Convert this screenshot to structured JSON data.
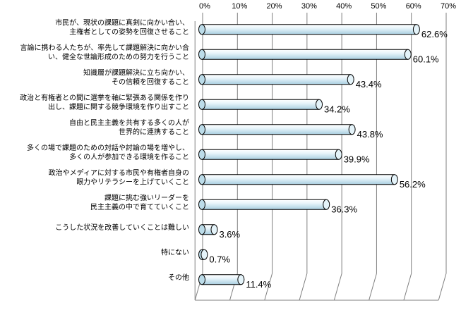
{
  "chart_data": {
    "type": "bar",
    "orientation": "horizontal",
    "style": "3d-cylinder",
    "x_ticks": [
      "0%",
      "10%",
      "20%",
      "30%",
      "40%",
      "50%",
      "60%",
      "70%"
    ],
    "xlim": [
      0,
      70
    ],
    "grid": true,
    "categories": [
      [
        "市民が、現状の課題に真剣に向かい合い、",
        "主権者としての姿勢を回復させること"
      ],
      [
        "言論に携わる人たちが、率先して課題解決に向かい合",
        "い、健全な世論形成のための努力を行うこと"
      ],
      [
        "知識層が課題解決に立ち向かい、",
        "その信頼を回復すること"
      ],
      [
        "政治と有権者との間に選挙を軸に緊張ある関係を作り",
        "出し、課題に関する競争環境を作り出すこと"
      ],
      [
        "自由と民主主義を共有する多くの人が",
        "世界的に連携すること"
      ],
      [
        "多くの場で課題のための対話や討論の場を増やし、",
        "多くの人が参加できる環境を作ること"
      ],
      [
        "政治やメディアに対する市民や有権者自身の",
        "眼力やリテラシーを上げていくこと"
      ],
      [
        "課題に挑む強いリーダーを",
        "民主主義の中で育てていくこと"
      ],
      [
        "こうした状況を改善していくことは難しい"
      ],
      [
        "特にない"
      ],
      [
        "その他"
      ]
    ],
    "values": [
      62.6,
      60.1,
      43.4,
      34.2,
      43.8,
      39.9,
      56.2,
      36.3,
      3.6,
      0.7,
      11.4
    ],
    "value_labels": [
      "62.6%",
      "60.1%",
      "43.4%",
      "34.2%",
      "43.8%",
      "39.9%",
      "56.2%",
      "36.3%",
      "3.6%",
      "0.7%",
      "11.4%"
    ],
    "bar_color": "#d6ecf5",
    "bar_edge_color": "#000000",
    "grid_color": "#7f7f7f"
  }
}
